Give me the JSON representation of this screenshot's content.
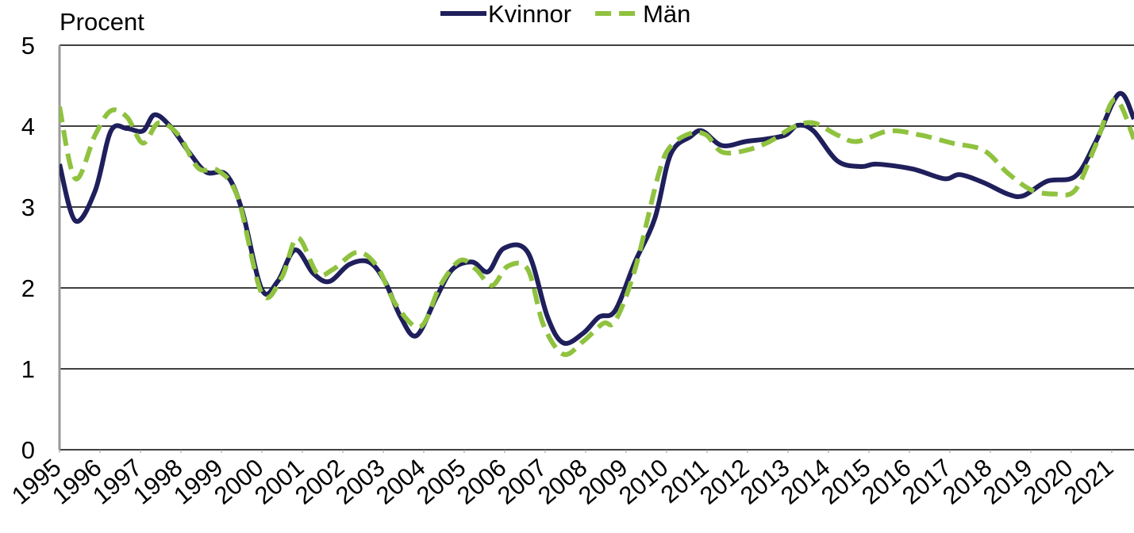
{
  "chart_data": {
    "type": "line",
    "y_label": "Procent",
    "legend": "top",
    "grid": true,
    "xlim": [
      1995,
      2021.55
    ],
    "xticks": [
      1995,
      1996,
      1997,
      1998,
      1999,
      2000,
      2001,
      2002,
      2003,
      2004,
      2005,
      2006,
      2007,
      2008,
      2009,
      2010,
      2011,
      2012,
      2013,
      2014,
      2015,
      2016,
      2017,
      2018,
      2019,
      2020,
      2021
    ],
    "ylim": [
      0,
      5
    ],
    "yticks": [
      0,
      1,
      2,
      3,
      4,
      5
    ],
    "series": [
      {
        "name": "Kvinnor",
        "color": "#1f1f5c",
        "dash": false,
        "x": [
          1995.0,
          1995.39,
          1995.88,
          1996.27,
          1996.67,
          1997.06,
          1997.35,
          1997.75,
          1998.24,
          1998.63,
          1999.12,
          1999.51,
          2000.0,
          2000.39,
          2000.82,
          2001.27,
          2001.67,
          2002.16,
          2002.65,
          2003.04,
          2003.43,
          2003.82,
          2004.31,
          2004.71,
          2005.2,
          2005.59,
          2005.98,
          2006.57,
          2007.06,
          2007.45,
          2007.94,
          2008.33,
          2008.73,
          2009.22,
          2009.71,
          2010.1,
          2010.59,
          2010.88,
          2011.37,
          2011.96,
          2012.45,
          2012.94,
          2013.24,
          2013.63,
          2014.22,
          2014.8,
          2015.2,
          2016.08,
          2016.86,
          2017.25,
          2017.84,
          2018.43,
          2018.82,
          2019.41,
          2020.1,
          2020.59,
          2021.18,
          2021.55
        ],
        "values": [
          3.53,
          2.83,
          3.2,
          3.94,
          3.97,
          3.94,
          4.14,
          3.99,
          3.65,
          3.43,
          3.4,
          2.96,
          1.98,
          2.08,
          2.47,
          2.18,
          2.08,
          2.29,
          2.32,
          2.08,
          1.64,
          1.41,
          1.88,
          2.23,
          2.32,
          2.2,
          2.49,
          2.44,
          1.64,
          1.32,
          1.44,
          1.64,
          1.72,
          2.32,
          2.86,
          3.65,
          3.87,
          3.94,
          3.76,
          3.81,
          3.84,
          3.89,
          4.01,
          3.94,
          3.57,
          3.5,
          3.53,
          3.47,
          3.35,
          3.4,
          3.3,
          3.16,
          3.14,
          3.32,
          3.38,
          3.79,
          4.4,
          4.09
        ]
      },
      {
        "name": "Män",
        "color": "#8fc23f",
        "dash": true,
        "x": [
          1995.0,
          1995.39,
          1995.88,
          1996.27,
          1996.67,
          1997.06,
          1997.45,
          1997.94,
          1998.43,
          1998.92,
          1999.41,
          2000.0,
          2000.49,
          2000.88,
          2001.37,
          2001.76,
          2002.35,
          2002.84,
          2003.33,
          2003.92,
          2004.41,
          2004.9,
          2005.29,
          2005.69,
          2006.08,
          2006.57,
          2006.96,
          2007.45,
          2007.94,
          2008.43,
          2008.73,
          2009.22,
          2009.8,
          2010.1,
          2010.59,
          2010.98,
          2011.37,
          2011.96,
          2012.55,
          2013.14,
          2013.63,
          2014.22,
          2014.71,
          2015.49,
          2016.27,
          2017.06,
          2017.84,
          2018.43,
          2019.02,
          2019.61,
          2020.1,
          2020.59,
          2021.08,
          2021.55
        ],
        "values": [
          4.24,
          3.35,
          3.89,
          4.19,
          4.11,
          3.79,
          4.04,
          3.89,
          3.48,
          3.45,
          3.11,
          1.93,
          2.13,
          2.62,
          2.18,
          2.23,
          2.44,
          2.27,
          1.78,
          1.52,
          2.03,
          2.34,
          2.23,
          2.03,
          2.27,
          2.23,
          1.54,
          1.18,
          1.34,
          1.56,
          1.59,
          2.23,
          3.4,
          3.75,
          3.91,
          3.89,
          3.68,
          3.7,
          3.81,
          3.99,
          4.04,
          3.89,
          3.81,
          3.94,
          3.89,
          3.79,
          3.7,
          3.42,
          3.21,
          3.16,
          3.21,
          3.75,
          4.33,
          3.84
        ]
      }
    ]
  }
}
